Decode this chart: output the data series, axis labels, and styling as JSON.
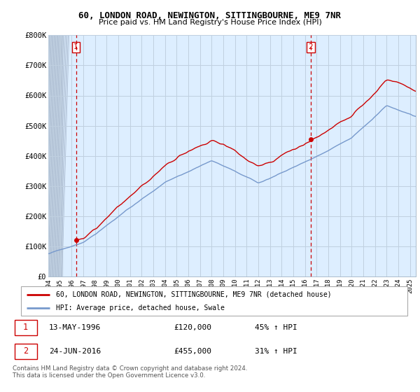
{
  "title1": "60, LONDON ROAD, NEWINGTON, SITTINGBOURNE, ME9 7NR",
  "title2": "Price paid vs. HM Land Registry's House Price Index (HPI)",
  "background_color": "#ffffff",
  "plot_bg_color": "#ddeeff",
  "grid_color": "#c0d0e0",
  "red_color": "#cc0000",
  "blue_color": "#7799cc",
  "purchase1_year": 1996.37,
  "purchase1_price": 120000,
  "purchase1_label": "1",
  "purchase2_year": 2016.48,
  "purchase2_price": 455000,
  "purchase2_label": "2",
  "xmin": 1994,
  "xmax": 2025.5,
  "ymin": 0,
  "ymax": 800000,
  "yticks": [
    0,
    100000,
    200000,
    300000,
    400000,
    500000,
    600000,
    700000,
    800000
  ],
  "ytick_labels": [
    "£0",
    "£100K",
    "£200K",
    "£300K",
    "£400K",
    "£500K",
    "£600K",
    "£700K",
    "£800K"
  ],
  "xtick_years": [
    1994,
    1995,
    1996,
    1997,
    1998,
    1999,
    2000,
    2001,
    2002,
    2003,
    2004,
    2005,
    2006,
    2007,
    2008,
    2009,
    2010,
    2011,
    2012,
    2013,
    2014,
    2015,
    2016,
    2017,
    2018,
    2019,
    2020,
    2021,
    2022,
    2023,
    2024,
    2025
  ],
  "legend_line1": "60, LONDON ROAD, NEWINGTON, SITTINGBOURNE, ME9 7NR (detached house)",
  "legend_line2": "HPI: Average price, detached house, Swale",
  "annotation1_date": "13-MAY-1996",
  "annotation1_price": "£120,000",
  "annotation1_hpi": "45% ↑ HPI",
  "annotation2_date": "24-JUN-2016",
  "annotation2_price": "£455,000",
  "annotation2_hpi": "31% ↑ HPI",
  "footer": "Contains HM Land Registry data © Crown copyright and database right 2024.\nThis data is licensed under the Open Government Licence v3.0."
}
